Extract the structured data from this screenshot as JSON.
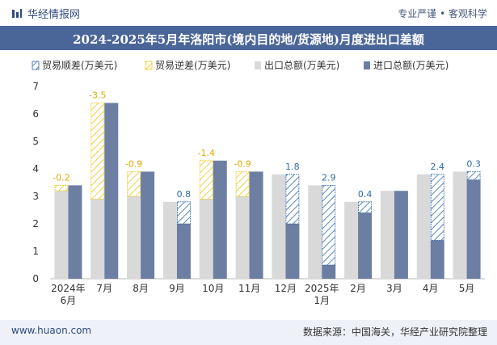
{
  "header": {
    "brand": "华经情报网",
    "tagline": "专业严谨 • 客观科学"
  },
  "title": "2024-2025年5月年洛阳市(境内目的地/货源地)月度进出口差额",
  "footer": {
    "site": "www.huaon.com",
    "source": "数据来源：中国海关，华经产业研究院整理"
  },
  "colors": {
    "surplus": "#2f6aa6",
    "deficit": "#f0c419",
    "export": "#d9d9d9",
    "import": "#6d7ea3",
    "title_bg": "#4a6699"
  },
  "chart_data": {
    "type": "bar",
    "categories": [
      "2024年\n6月",
      "7月",
      "8月",
      "9月",
      "10月",
      "11月",
      "12月",
      "2025年\n1月",
      "2月",
      "3月",
      "4月",
      "5月"
    ],
    "series": [
      {
        "name": "出口总额(万美元)",
        "values": [
          3.2,
          2.9,
          3.0,
          2.8,
          2.9,
          3.0,
          3.8,
          3.4,
          2.8,
          3.2,
          3.8,
          3.9
        ]
      },
      {
        "name": "进口总额(万美元)",
        "values": [
          3.4,
          6.4,
          3.9,
          2.0,
          4.3,
          3.9,
          2.0,
          0.5,
          2.4,
          3.2,
          1.4,
          3.6
        ]
      }
    ],
    "balance": {
      "labels": [
        "-0.2",
        "-3.5",
        "-0.9",
        "0.8",
        "-1.4",
        "-0.9",
        "1.8",
        "2.9",
        "0.4",
        "",
        "2.4",
        "0.3"
      ],
      "values": [
        -0.2,
        -3.5,
        -0.9,
        0.8,
        -1.4,
        -0.9,
        1.8,
        2.9,
        0.4,
        0,
        2.4,
        0.3
      ]
    },
    "legend": [
      "贸易顺差(万美元)",
      "贸易逆差(万美元)",
      "出口总额(万美元)",
      "进口总额(万美元)"
    ],
    "ylim": [
      0,
      7
    ],
    "yticks": [
      0,
      1,
      2,
      3,
      4,
      5,
      6,
      7
    ]
  }
}
